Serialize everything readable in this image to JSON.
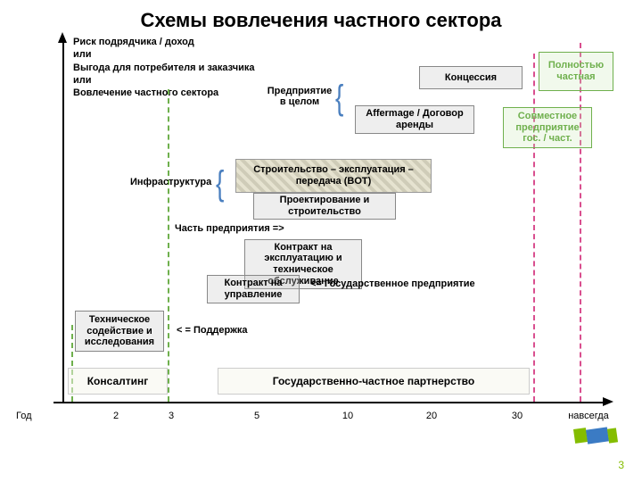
{
  "title": "Схемы вовлечения частного сектора",
  "y_label": "Риск подрядчика / доход\nили\nВыгода для потребителя и заказчика\nили\nВовлечение частного сектора",
  "x_label_left": "Год",
  "x_ticks": [
    "2",
    "3",
    "5",
    "10",
    "20",
    "30",
    "навсегда"
  ],
  "stage_labels": {
    "whole_company": "Предприятие в целом",
    "infrastructure": "Инфраструктура",
    "part_company": "Часть предприятия =>",
    "gov_company": "<= Государственное предприятие",
    "support": "< = Поддержка"
  },
  "boxes": {
    "full_private": "Полностью частная",
    "concession": "Концессия",
    "affermage": "Affermage / Договор аренды",
    "jv": "Совместное предприятие гос. / част.",
    "bot": "Строительство – эксплуатация – передача (BOT)",
    "design_build": "Проектирование и строительство",
    "om_contract": "Контракт на эксплуатацию и техническое обслуживание",
    "mgmt_contract": "Контракт на управление",
    "tech_assist": "Техническое содействие и исследования",
    "consulting": "Консалтинг",
    "ppp_band": "Государственно-частное партнерство"
  },
  "colors": {
    "green": "#6fb04d",
    "pink": "#d94f8f",
    "logo_green": "#84bd00",
    "logo_blue": "#3b7bc4"
  },
  "page_number": "3"
}
